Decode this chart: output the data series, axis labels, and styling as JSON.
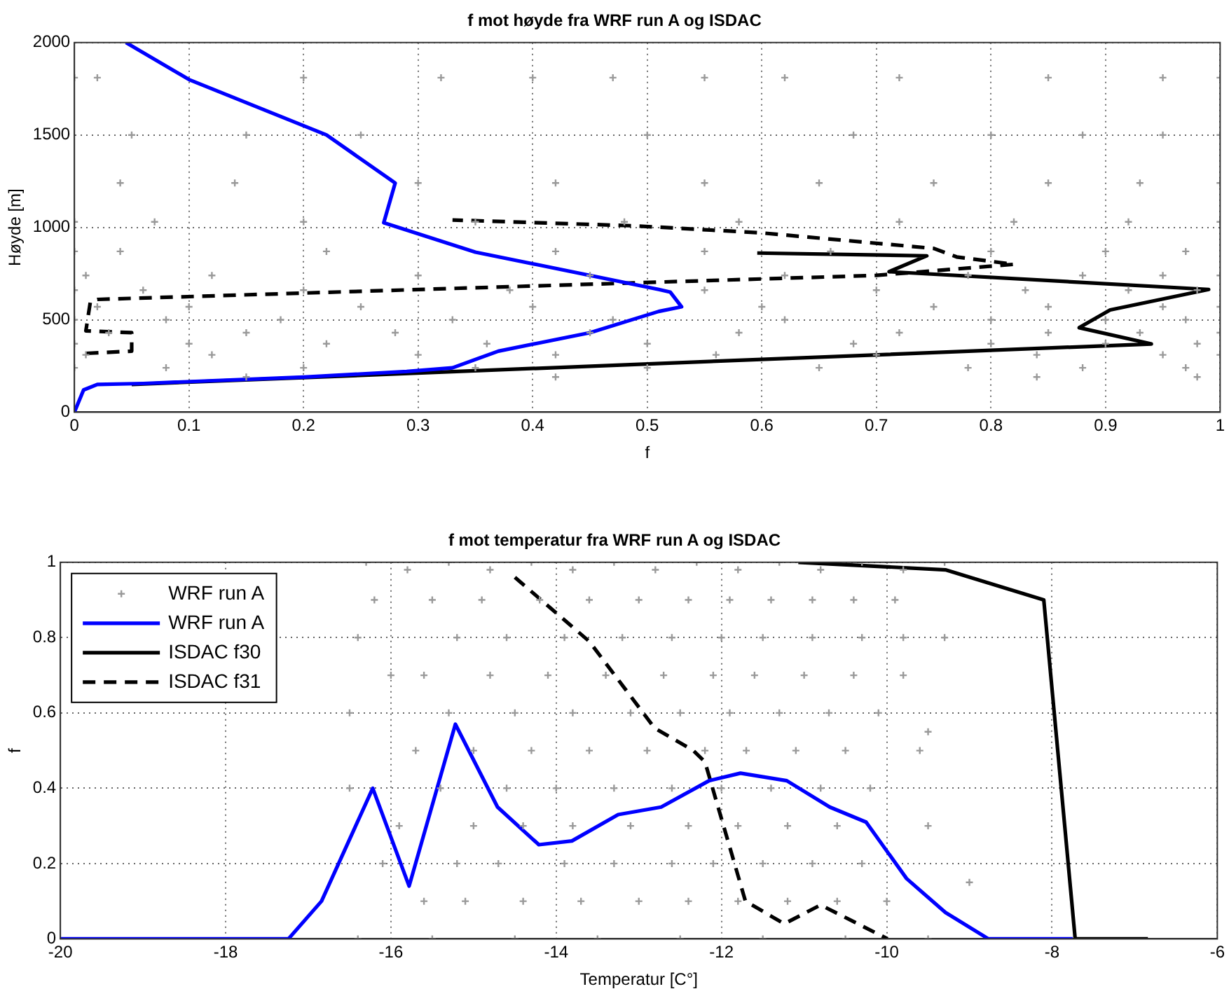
{
  "chart_data": [
    {
      "type": "scatter",
      "title": "f mot høyde fra WRF run A og ISDAC",
      "xlabel": "f",
      "ylabel": "Høyde [m]",
      "xlim": [
        0,
        1
      ],
      "xticks": [
        0,
        0.1,
        0.2,
        0.3,
        0.4,
        0.5,
        0.6,
        0.7,
        0.8,
        0.9,
        1
      ],
      "ylim": [
        0,
        2000
      ],
      "yticks": [
        0,
        500,
        1000,
        1500,
        2000
      ],
      "grid": true,
      "series": [
        {
          "type": "scatter",
          "color": "#999999",
          "marker": "cross",
          "x": [
            0,
            0.02,
            0.2,
            0.32,
            0.4,
            0.47,
            0.55,
            0.62,
            0.72,
            0.85,
            0.95,
            1.0,
            0.05,
            0.15,
            0.25,
            0.5,
            0.68,
            0.8,
            0.88,
            0.95,
            1.0,
            0.04,
            0.14,
            0.3,
            0.42,
            0.55,
            0.65,
            0.75,
            0.85,
            0.93,
            1.0,
            0,
            0.07,
            0.2,
            0.35,
            0.48,
            0.58,
            0.72,
            0.82,
            0.92,
            1.0,
            0,
            0.04,
            0.22,
            0.42,
            0.55,
            0.66,
            0.8,
            0.9,
            0.97,
            0.01,
            0.12,
            0.3,
            0.45,
            0.62,
            0.78,
            0.88,
            0.95,
            1.0,
            0,
            0.06,
            0.2,
            0.38,
            0.55,
            0.7,
            0.83,
            0.92,
            0.98,
            0.02,
            0.1,
            0.25,
            0.4,
            0.6,
            0.75,
            0.85,
            0.95,
            1.0,
            0,
            0.08,
            0.18,
            0.33,
            0.47,
            0.62,
            0.8,
            0.9,
            0.97,
            0.03,
            0.15,
            0.28,
            0.45,
            0.58,
            0.72,
            0.85,
            0.93,
            1.0,
            0,
            0.1,
            0.22,
            0.36,
            0.5,
            0.68,
            0.8,
            0.9,
            0.98,
            0.01,
            0.12,
            0.3,
            0.42,
            0.56,
            0.7,
            0.84,
            0.95,
            1.0,
            0,
            0.08,
            0.2,
            0.35,
            0.5,
            0.65,
            0.78,
            0.88,
            0.97,
            0.15,
            0.42,
            0.84,
            0.98
          ],
          "values": [
            1810,
            1810,
            1810,
            1810,
            1810,
            1810,
            1810,
            1810,
            1810,
            1810,
            1810,
            1810,
            1500,
            1500,
            1500,
            1500,
            1500,
            1500,
            1500,
            1500,
            1500,
            1240,
            1240,
            1240,
            1240,
            1240,
            1240,
            1240,
            1240,
            1240,
            1240,
            1030,
            1030,
            1030,
            1030,
            1030,
            1030,
            1030,
            1030,
            1030,
            1030,
            870,
            870,
            870,
            870,
            870,
            870,
            870,
            870,
            870,
            740,
            740,
            740,
            740,
            740,
            740,
            740,
            740,
            740,
            660,
            660,
            660,
            660,
            660,
            660,
            660,
            660,
            660,
            570,
            570,
            570,
            570,
            570,
            570,
            570,
            570,
            570,
            500,
            500,
            500,
            500,
            500,
            500,
            500,
            500,
            500,
            430,
            430,
            430,
            430,
            430,
            430,
            430,
            430,
            430,
            370,
            370,
            370,
            370,
            370,
            370,
            370,
            370,
            370,
            310,
            310,
            310,
            310,
            310,
            310,
            310,
            310,
            310,
            240,
            240,
            240,
            240,
            240,
            240,
            240,
            240,
            240,
            190,
            190,
            190,
            190
          ]
        },
        {
          "type": "line",
          "color": "#0000ff",
          "line_style": "solid",
          "x": [
            0,
            0.008,
            0.02,
            0.06,
            0.2,
            0.29,
            0.33,
            0.37,
            0.45,
            0.51,
            0.53,
            0.52,
            0.51,
            0.35,
            0.27,
            0.28,
            0.22,
            0.1,
            0.045
          ],
          "values": [
            0,
            120,
            150,
            155,
            190,
            220,
            240,
            330,
            430,
            545,
            570,
            650,
            664,
            866,
            1025,
            1240,
            1500,
            1800,
            2000
          ]
        },
        {
          "type": "line",
          "color": "#000000",
          "line_style": "solid",
          "x": [
            0.05,
            0.94,
            0.877,
            0.904,
            0.99,
            0.711,
            0.744,
            0.596
          ],
          "values": [
            150,
            369,
            457,
            553,
            664,
            760,
            846,
            861
          ]
        },
        {
          "type": "line",
          "color": "#000000",
          "line_style": "dashed",
          "x": [
            0.01,
            0.05,
            0.05,
            0.01,
            0.014,
            0.02,
            0.7,
            0.82,
            0.77,
            0.75,
            0.6,
            0.49,
            0.33
          ],
          "values": [
            318,
            330,
            430,
            440,
            600,
            610,
            740,
            800,
            840,
            886,
            970,
            1008,
            1040
          ]
        }
      ]
    },
    {
      "type": "scatter",
      "title": "f mot temperatur fra WRF run A og ISDAC",
      "xlabel": "Temperatur [C°]",
      "ylabel": "f",
      "xlim": [
        -20,
        -6
      ],
      "xticks": [
        -20,
        -18,
        -16,
        -14,
        -12,
        -10,
        -8,
        -6
      ],
      "ylim": [
        0,
        1
      ],
      "yticks": [
        0,
        0.2,
        0.4,
        0.6,
        0.8,
        1
      ],
      "grid": true,
      "legend": "top left",
      "series": [
        {
          "type": "scatter",
          "name": "WRF run A",
          "color": "#999999",
          "marker": "cross",
          "x": [
            -16.3,
            -15.8,
            -15.3,
            -14.8,
            -14.3,
            -13.8,
            -13.3,
            -12.8,
            -12.3,
            -11.8,
            -11.3,
            -10.8,
            -10.3,
            -9.8,
            -9.3,
            -16.2,
            -15.5,
            -14.9,
            -14.2,
            -13.6,
            -13,
            -12.4,
            -11.9,
            -11.4,
            -10.9,
            -10.4,
            -9.9,
            -16.4,
            -15.2,
            -14.6,
            -13.9,
            -13.2,
            -12.6,
            -12,
            -11.5,
            -10.9,
            -10.3,
            -9.8,
            -16,
            -15.6,
            -14.8,
            -14.1,
            -13.4,
            -12.7,
            -12.1,
            -11.6,
            -11,
            -10.4,
            -9.8,
            -16.5,
            -15.3,
            -14.5,
            -13.8,
            -13.1,
            -12.5,
            -11.9,
            -11.3,
            -10.7,
            -10.1,
            -15.7,
            -15,
            -14.3,
            -13.6,
            -12.9,
            -12.2,
            -11.7,
            -11.1,
            -10.5,
            -9.6,
            -16.5,
            -15.4,
            -14.6,
            -14,
            -13.3,
            -12.6,
            -12,
            -11.4,
            -10.8,
            -10.2,
            -15.9,
            -15,
            -14.4,
            -13.8,
            -13.1,
            -12.4,
            -11.8,
            -11.2,
            -10.6,
            -9.5,
            -16.1,
            -15.2,
            -14.7,
            -13.9,
            -13.3,
            -12.6,
            -12.1,
            -11.5,
            -10.9,
            -10.3,
            -15.6,
            -15.1,
            -14.4,
            -13.7,
            -13,
            -12.4,
            -11.8,
            -11.2,
            -10.6,
            -10,
            -16.4,
            -15.5,
            -14.5,
            -13.5,
            -12.5,
            -11.5,
            -10.5,
            -9.5,
            -9.5,
            -9,
            -9.3
          ],
          "values": [
            1,
            0.98,
            1,
            0.98,
            1,
            0.98,
            1,
            0.98,
            1,
            0.98,
            1,
            0.98,
            1,
            0.98,
            1,
            0.9,
            0.9,
            0.9,
            0.9,
            0.9,
            0.9,
            0.9,
            0.9,
            0.9,
            0.9,
            0.9,
            0.9,
            0.8,
            0.8,
            0.8,
            0.8,
            0.8,
            0.8,
            0.8,
            0.8,
            0.8,
            0.8,
            0.8,
            0.7,
            0.7,
            0.7,
            0.7,
            0.7,
            0.7,
            0.7,
            0.7,
            0.7,
            0.7,
            0.7,
            0.6,
            0.6,
            0.6,
            0.6,
            0.6,
            0.6,
            0.6,
            0.6,
            0.6,
            0.6,
            0.5,
            0.5,
            0.5,
            0.5,
            0.5,
            0.5,
            0.5,
            0.5,
            0.5,
            0.5,
            0.4,
            0.4,
            0.4,
            0.4,
            0.4,
            0.4,
            0.4,
            0.4,
            0.4,
            0.4,
            0.3,
            0.3,
            0.3,
            0.3,
            0.3,
            0.3,
            0.3,
            0.3,
            0.3,
            0.3,
            0.2,
            0.2,
            0.2,
            0.2,
            0.2,
            0.2,
            0.2,
            0.2,
            0.2,
            0.2,
            0.1,
            0.1,
            0.1,
            0.1,
            0.1,
            0.1,
            0.1,
            0.1,
            0.1,
            0.1,
            0,
            0,
            0,
            0,
            0,
            0,
            0,
            0,
            0.55,
            0.15,
            0.8
          ]
        },
        {
          "type": "line",
          "name": "WRF run A",
          "color": "#0000ff",
          "line_style": "solid",
          "x": [
            -20,
            -17.24,
            -16.84,
            -16.22,
            -15.78,
            -15.22,
            -14.71,
            -14.21,
            -13.81,
            -13.25,
            -12.73,
            -12.15,
            -11.77,
            -11.21,
            -10.69,
            -10.25,
            -9.76,
            -9.29,
            -8.77,
            -7.75
          ],
          "values": [
            0,
            0,
            0.1,
            0.4,
            0.14,
            0.57,
            0.35,
            0.25,
            0.26,
            0.33,
            0.35,
            0.42,
            0.44,
            0.42,
            0.35,
            0.31,
            0.16,
            0.07,
            0,
            0
          ]
        },
        {
          "type": "line",
          "name": "ISDAC f30",
          "color": "#000000",
          "line_style": "solid",
          "x": [
            -11.07,
            -9.29,
            -8.1,
            -7.72,
            -6.84
          ],
          "values": [
            1,
            0.98,
            0.9,
            0,
            0
          ]
        },
        {
          "type": "line",
          "name": "ISDAC f31",
          "color": "#000000",
          "line_style": "dashed",
          "x": [
            -14.5,
            -13.6,
            -12.81,
            -12.34,
            -12.2,
            -11.71,
            -11.24,
            -10.8,
            -9.99
          ],
          "values": [
            0.96,
            0.79,
            0.56,
            0.5,
            0.47,
            0.1,
            0.04,
            0.09,
            0
          ]
        }
      ]
    }
  ]
}
